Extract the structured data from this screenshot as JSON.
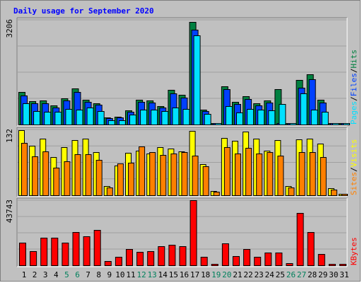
{
  "title": "Daily usage for September 2020",
  "colors": {
    "hits": "#008040",
    "files": "#0040ff",
    "pages": "#00e0ff",
    "visits": "#ffff00",
    "sites": "#ff8000",
    "kbytes": "#ff0000",
    "weekend": "#00805c",
    "weekday": "#000000",
    "panel": "#c0c0c0"
  },
  "chart_data": [
    {
      "type": "bar",
      "title": "Daily usage for September 2020",
      "categories": [
        "1",
        "2",
        "3",
        "4",
        "5",
        "6",
        "7",
        "8",
        "9",
        "10",
        "11",
        "12",
        "13",
        "14",
        "15",
        "16",
        "17",
        "18",
        "19",
        "20",
        "21",
        "22",
        "23",
        "24",
        "25",
        "26",
        "27",
        "28",
        "29",
        "30",
        "31"
      ],
      "weekend_days": [
        "5",
        "6",
        "12",
        "13",
        "19",
        "20",
        "26",
        "27"
      ],
      "ylabel_max": "3206",
      "ylim": [
        0,
        3206
      ],
      "legend": [
        "Pages",
        "/",
        "Files",
        "/",
        "Hits"
      ],
      "series": [
        {
          "name": "Hits",
          "values": [
            1000,
            720,
            740,
            590,
            810,
            1100,
            760,
            660,
            210,
            240,
            430,
            760,
            740,
            560,
            1060,
            900,
            3150,
            460,
            0,
            1180,
            700,
            860,
            650,
            740,
            1080,
            0,
            1370,
            1530,
            760,
            0,
            0
          ]
        },
        {
          "name": "Files",
          "values": [
            880,
            650,
            660,
            520,
            730,
            1000,
            700,
            600,
            190,
            210,
            390,
            690,
            680,
            510,
            960,
            820,
            2900,
            410,
            0,
            1090,
            630,
            790,
            590,
            670,
            0,
            0,
            1130,
            1380,
            680,
            0,
            0
          ]
        },
        {
          "name": "Pages",
          "values": [
            660,
            420,
            400,
            390,
            480,
            450,
            520,
            410,
            140,
            130,
            300,
            460,
            450,
            410,
            520,
            480,
            2720,
            320,
            30,
            560,
            370,
            480,
            460,
            430,
            620,
            40,
            960,
            460,
            390,
            30,
            0
          ]
        }
      ]
    },
    {
      "type": "bar",
      "categories": [
        "1",
        "2",
        "3",
        "4",
        "5",
        "6",
        "7",
        "8",
        "9",
        "10",
        "11",
        "12",
        "13",
        "14",
        "15",
        "16",
        "17",
        "18",
        "19",
        "20",
        "21",
        "22",
        "23",
        "24",
        "25",
        "26",
        "27",
        "28",
        "29",
        "30",
        "31"
      ],
      "ylabel_max": "132",
      "ylim": [
        0,
        132
      ],
      "legend": [
        "Sites",
        "/",
        "Visits"
      ],
      "series": [
        {
          "name": "Visits",
          "values": [
            130,
            100,
            113,
            77,
            96,
            111,
            113,
            86,
            18,
            59,
            85,
            90,
            84,
            96,
            94,
            88,
            129,
            63,
            9,
            115,
            109,
            128,
            114,
            89,
            110,
            18,
            112,
            114,
            104,
            14,
            0
          ]
        },
        {
          "name": "Sites",
          "values": [
            105,
            78,
            88,
            56,
            68,
            83,
            82,
            71,
            16,
            64,
            65,
            98,
            86,
            81,
            84,
            86,
            79,
            58,
            7,
            96,
            84,
            95,
            84,
            86,
            80,
            15,
            87,
            86,
            77,
            12,
            0
          ]
        }
      ]
    },
    {
      "type": "bar",
      "categories": [
        "1",
        "2",
        "3",
        "4",
        "5",
        "6",
        "7",
        "8",
        "9",
        "10",
        "11",
        "12",
        "13",
        "14",
        "15",
        "16",
        "17",
        "18",
        "19",
        "20",
        "21",
        "22",
        "23",
        "24",
        "25",
        "26",
        "27",
        "28",
        "29",
        "30",
        "31"
      ],
      "ylabel_max": "43743",
      "ylim": [
        0,
        43743
      ],
      "legend": [
        "KBytes"
      ],
      "series": [
        {
          "name": "KBytes",
          "values": [
            15200,
            9600,
            18500,
            18500,
            15300,
            22500,
            19600,
            23600,
            2800,
            5700,
            10800,
            9100,
            9700,
            12900,
            14000,
            12800,
            43700,
            5600,
            500,
            14800,
            6200,
            11000,
            5800,
            8400,
            8700,
            1200,
            35200,
            22300,
            7800,
            300,
            0
          ]
        }
      ]
    }
  ]
}
